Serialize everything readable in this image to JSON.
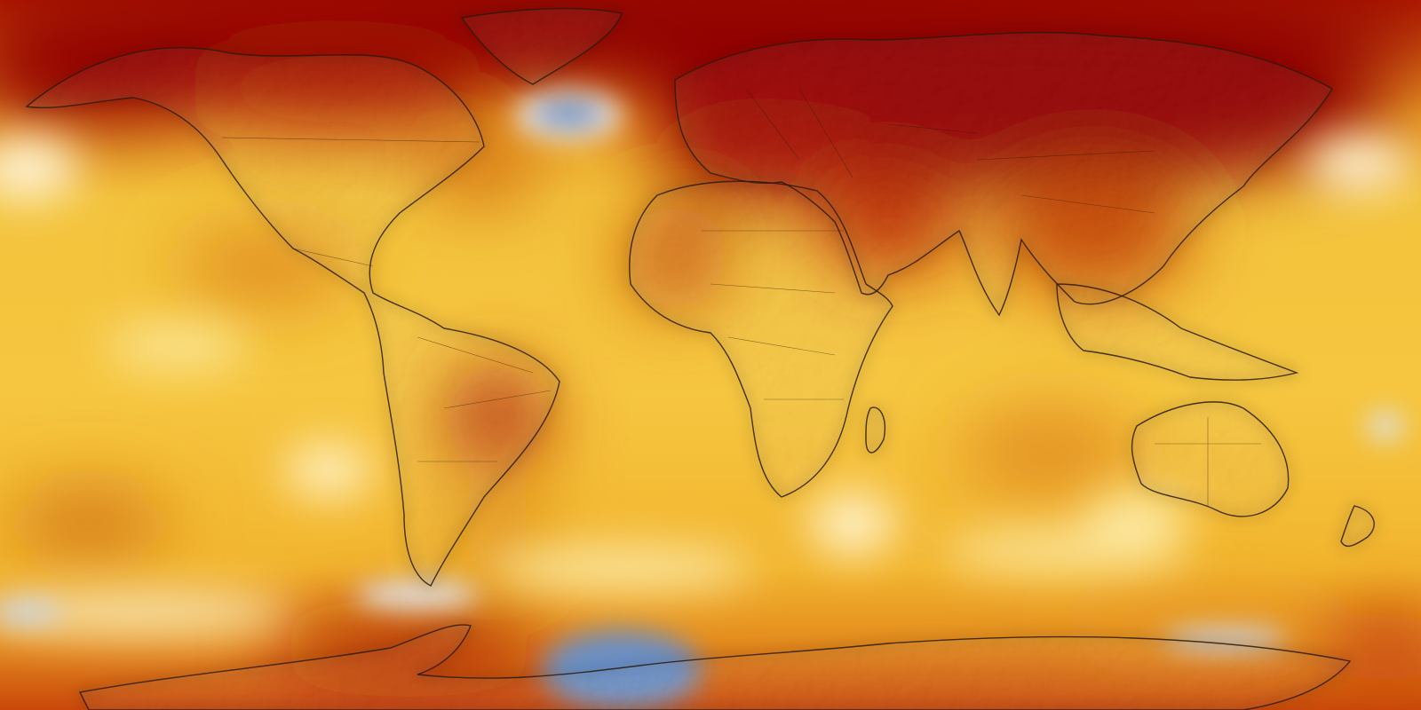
{
  "map": {
    "type": "global-temperature-anomaly",
    "projection": "equirectangular",
    "labels": [],
    "colors": {
      "ocean_base": "#f2b62c",
      "extreme_warm": "#8f0000",
      "strong_warm": "#c63a05",
      "warm": "#e2801b",
      "mild_warm": "#f7d04c",
      "neutral": "#fff4c8",
      "cool": "#6b92c8",
      "land_outline": "#2a1a0a"
    },
    "features": [
      {
        "name": "north-america",
        "anomaly": "warm"
      },
      {
        "name": "greenland",
        "anomaly": "warm"
      },
      {
        "name": "south-america",
        "anomaly": "warm"
      },
      {
        "name": "europe",
        "anomaly": "extreme-warm"
      },
      {
        "name": "africa",
        "anomaly": "warm"
      },
      {
        "name": "middle-east",
        "anomaly": "strong-warm"
      },
      {
        "name": "asia",
        "anomaly": "extreme-warm"
      },
      {
        "name": "india",
        "anomaly": "mild-warm"
      },
      {
        "name": "southeast-asia",
        "anomaly": "warm"
      },
      {
        "name": "australia",
        "anomaly": "warm"
      },
      {
        "name": "madagascar",
        "anomaly": "mild-warm"
      },
      {
        "name": "new-zealand",
        "anomaly": "mild-warm"
      },
      {
        "name": "antarctica",
        "anomaly": "mixed"
      },
      {
        "name": "north-atlantic-cool-spot",
        "anomaly": "cool"
      },
      {
        "name": "southern-ocean-cool-spot",
        "anomaly": "cool"
      }
    ]
  }
}
